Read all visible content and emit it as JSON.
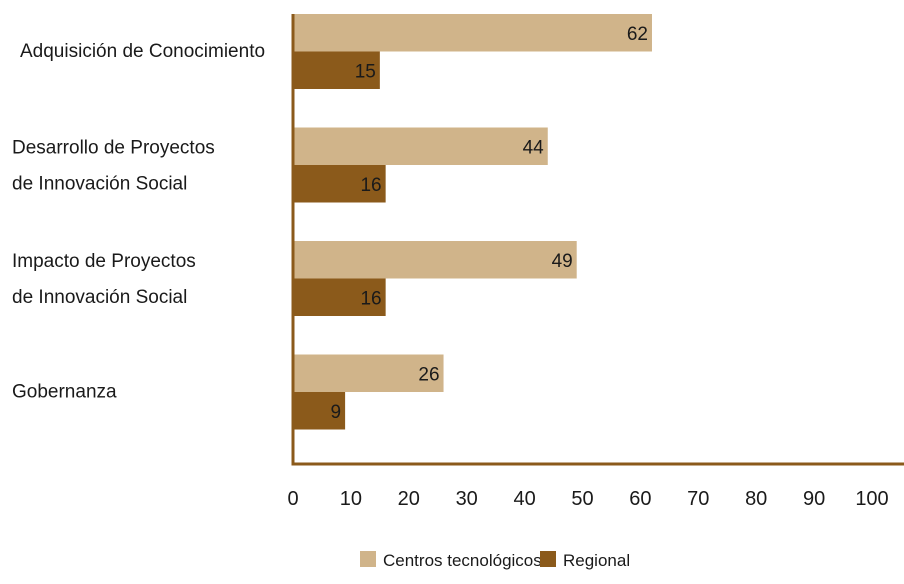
{
  "chart_data": {
    "type": "bar",
    "orientation": "horizontal",
    "categories": [
      [
        "Adquisición de Conocimiento"
      ],
      [
        "Desarrollo de Proyectos",
        "de Innovación Social"
      ],
      [
        "Impacto de Proyectos",
        "de Innovación Social"
      ],
      [
        "Gobernanza"
      ]
    ],
    "series": [
      {
        "name": "Centros tecnológicos",
        "color": "#D0B48A",
        "values": [
          62,
          44,
          49,
          26
        ]
      },
      {
        "name": "Regional",
        "color": "#8B5A1B",
        "values": [
          15,
          16,
          16,
          9
        ]
      }
    ],
    "xlim": [
      0,
      100
    ],
    "xticks": [
      0,
      10,
      20,
      30,
      40,
      50,
      60,
      70,
      80,
      90,
      100
    ],
    "axis_color": "#8B5A1B",
    "grid": false,
    "legend_position": "bottom-center",
    "title": "",
    "xlabel": "",
    "ylabel": ""
  }
}
